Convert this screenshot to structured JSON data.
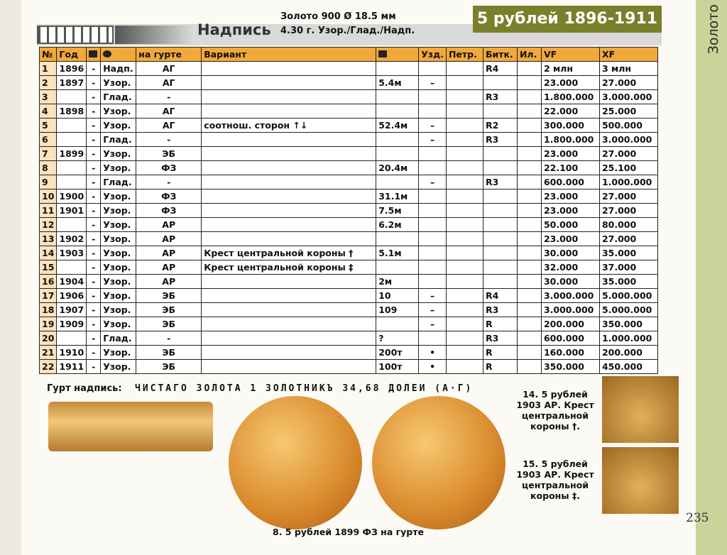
{
  "header": {
    "section": "Золото",
    "label": "Надпись",
    "spec1": "Золото 900  Ø 18.5 мм",
    "spec2": "4.30 г.  Узор./Глад./Надп.",
    "title": "5 рублей 1896-1911"
  },
  "table": {
    "columns": {
      "n": "№",
      "year": "Год",
      "edge_mark": "на гурте",
      "variant": "Вариант",
      "uzd": "Узд.",
      "petr": "Петр.",
      "bitk": "Битк.",
      "il": "Ил.",
      "vf": "VF",
      "xf": "XF"
    },
    "rows": [
      {
        "n": "1",
        "year": "1896",
        "mint": "-",
        "edge": "Надп.",
        "mark": "АГ",
        "bitk": "R4",
        "vf": "2 млн",
        "xf": "3 млн"
      },
      {
        "n": "2",
        "year": "1897",
        "mint": "-",
        "edge": "Узор.",
        "mark": "АГ",
        "mintage": "5.4м",
        "uzd": "–",
        "vf": "23.000",
        "xf": "27.000"
      },
      {
        "n": "3",
        "mint": "-",
        "edge": "Глад.",
        "mark": "-",
        "bitk": "R3",
        "vf": "1.800.000",
        "xf": "3.000.000"
      },
      {
        "n": "4",
        "year": "1898",
        "mint": "-",
        "edge": "Узор.",
        "mark": "АГ",
        "vf": "22.000",
        "xf": "25.000"
      },
      {
        "n": "5",
        "mint": "-",
        "edge": "Узор.",
        "mark": "АГ",
        "variant": "соотнош. сторон ↑↓",
        "mintage": "52.4м",
        "uzd": "–",
        "bitk": "R2",
        "vf": "300.000",
        "xf": "500.000"
      },
      {
        "n": "6",
        "mint": "-",
        "edge": "Глад.",
        "mark": "-",
        "uzd": "–",
        "bitk": "R3",
        "vf": "1.800.000",
        "xf": "3.000.000"
      },
      {
        "n": "7",
        "year": "1899",
        "mint": "-",
        "edge": "Узор.",
        "mark": "ЭБ",
        "vf": "23.000",
        "xf": "27.000"
      },
      {
        "n": "8",
        "mint": "-",
        "edge": "Узор.",
        "mark": "ФЗ",
        "mintage": "20.4м",
        "vf": "22.100",
        "xf": "25.100"
      },
      {
        "n": "9",
        "mint": "-",
        "edge": "Глад.",
        "mark": "-",
        "uzd": "–",
        "bitk": "R3",
        "vf": "600.000",
        "xf": "1.000.000"
      },
      {
        "n": "10",
        "year": "1900",
        "mint": "-",
        "edge": "Узор.",
        "mark": "ФЗ",
        "mintage": "31.1м",
        "vf": "23.000",
        "xf": "27.000"
      },
      {
        "n": "11",
        "year": "1901",
        "mint": "-",
        "edge": "Узор.",
        "mark": "ФЗ",
        "mintage": "7.5м",
        "vf": "23.000",
        "xf": "27.000"
      },
      {
        "n": "12",
        "mint": "-",
        "edge": "Узор.",
        "mark": "АР",
        "mintage": "6.2м",
        "vf": "50.000",
        "xf": "80.000"
      },
      {
        "n": "13",
        "year": "1902",
        "mint": "-",
        "edge": "Узор.",
        "mark": "АР",
        "vf": "23.000",
        "xf": "27.000"
      },
      {
        "n": "14",
        "year": "1903",
        "mint": "-",
        "edge": "Узор.",
        "mark": "АР",
        "variant": "Крест центральной короны †",
        "mintage": "5.1м",
        "vf": "30.000",
        "xf": "35.000"
      },
      {
        "n": "15",
        "mint": "-",
        "edge": "Узор.",
        "mark": "АР",
        "variant": "Крест центральной короны ‡",
        "vf": "32.000",
        "xf": "37.000"
      },
      {
        "n": "16",
        "year": "1904",
        "mint": "-",
        "edge": "Узор.",
        "mark": "АР",
        "mintage": "2м",
        "vf": "30.000",
        "xf": "35.000"
      },
      {
        "n": "17",
        "year": "1906",
        "mint": "-",
        "edge": "Узор.",
        "mark": "ЭБ",
        "mintage": "10",
        "uzd": "–",
        "bitk": "R4",
        "vf": "3.000.000",
        "xf": "5.000.000"
      },
      {
        "n": "18",
        "year": "1907",
        "mint": "-",
        "edge": "Узор.",
        "mark": "ЭБ",
        "mintage": "109",
        "uzd": "–",
        "bitk": "R3",
        "vf": "3.000.000",
        "xf": "5.000.000"
      },
      {
        "n": "19",
        "year": "1909",
        "mint": "-",
        "edge": "Узор.",
        "mark": "ЭБ",
        "uzd": "–",
        "bitk": "R",
        "vf": "200.000",
        "xf": "350.000"
      },
      {
        "n": "20",
        "mint": "-",
        "edge": "Глад.",
        "mark": "-",
        "mintage": "?",
        "bitk": "R3",
        "vf": "600.000",
        "xf": "1.000.000"
      },
      {
        "n": "21",
        "year": "1910",
        "mint": "-",
        "edge": "Узор.",
        "mark": "ЭБ",
        "mintage": "200т",
        "uzd": "•",
        "bitk": "R",
        "vf": "160.000",
        "xf": "200.000"
      },
      {
        "n": "22",
        "year": "1911",
        "mint": "-",
        "edge": "Узор.",
        "mark": "ЭБ",
        "mintage": "100т",
        "uzd": "•",
        "bitk": "R",
        "vf": "350.000",
        "xf": "450.000"
      }
    ]
  },
  "edge_inscription": {
    "label": "Гурт надпись:",
    "text": "ЧИСТАГО ЗОЛОТА 1 ЗОЛОТНИКЪ 34,68 ДОЛЕИ (А·Г)"
  },
  "captions": {
    "coin": "8. 5 рублей 1899 ФЗ на гурте",
    "crown1": "14. 5 рублей 1903 АР. Крест центральной короны †.",
    "crown2": "15. 5 рублей 1903 АР. Крест центральной короны ‡."
  },
  "page_number": "235"
}
